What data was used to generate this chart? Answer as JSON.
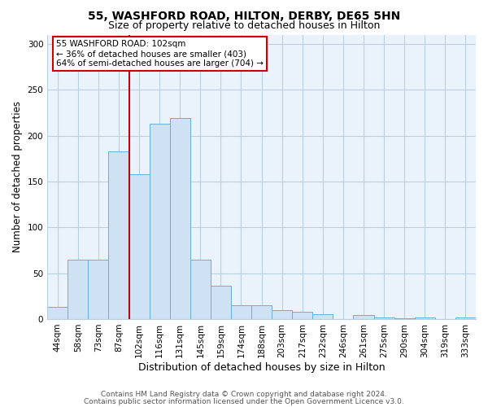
{
  "title1": "55, WASHFORD ROAD, HILTON, DERBY, DE65 5HN",
  "title2": "Size of property relative to detached houses in Hilton",
  "xlabel": "Distribution of detached houses by size in Hilton",
  "ylabel": "Number of detached properties",
  "categories": [
    "44sqm",
    "58sqm",
    "73sqm",
    "87sqm",
    "102sqm",
    "116sqm",
    "131sqm",
    "145sqm",
    "159sqm",
    "174sqm",
    "188sqm",
    "203sqm",
    "217sqm",
    "232sqm",
    "246sqm",
    "261sqm",
    "275sqm",
    "290sqm",
    "304sqm",
    "319sqm",
    "333sqm"
  ],
  "values": [
    13,
    65,
    65,
    183,
    158,
    213,
    219,
    65,
    36,
    15,
    15,
    10,
    8,
    5,
    0,
    4,
    2,
    1,
    2,
    0,
    2
  ],
  "bar_color": "#cfe2f3",
  "bar_edge_color": "#6baed6",
  "vline_x_index": 4,
  "vline_color": "#cc0000",
  "annotation_text": "55 WASHFORD ROAD: 102sqm\n← 36% of detached houses are smaller (403)\n64% of semi-detached houses are larger (704) →",
  "annotation_box_color": "white",
  "annotation_box_edge": "#cc0000",
  "footer1": "Contains HM Land Registry data © Crown copyright and database right 2024.",
  "footer2": "Contains public sector information licensed under the Open Government Licence v3.0.",
  "ylim": [
    0,
    310
  ],
  "yticks": [
    0,
    50,
    100,
    150,
    200,
    250,
    300
  ],
  "plot_bg_color": "#eaf3fb",
  "background_color": "#ffffff",
  "grid_color": "#b8cfe0",
  "title1_fontsize": 10,
  "title2_fontsize": 9,
  "xlabel_fontsize": 9,
  "ylabel_fontsize": 8.5,
  "tick_fontsize": 7.5,
  "annotation_fontsize": 7.5,
  "footer_fontsize": 6.5
}
